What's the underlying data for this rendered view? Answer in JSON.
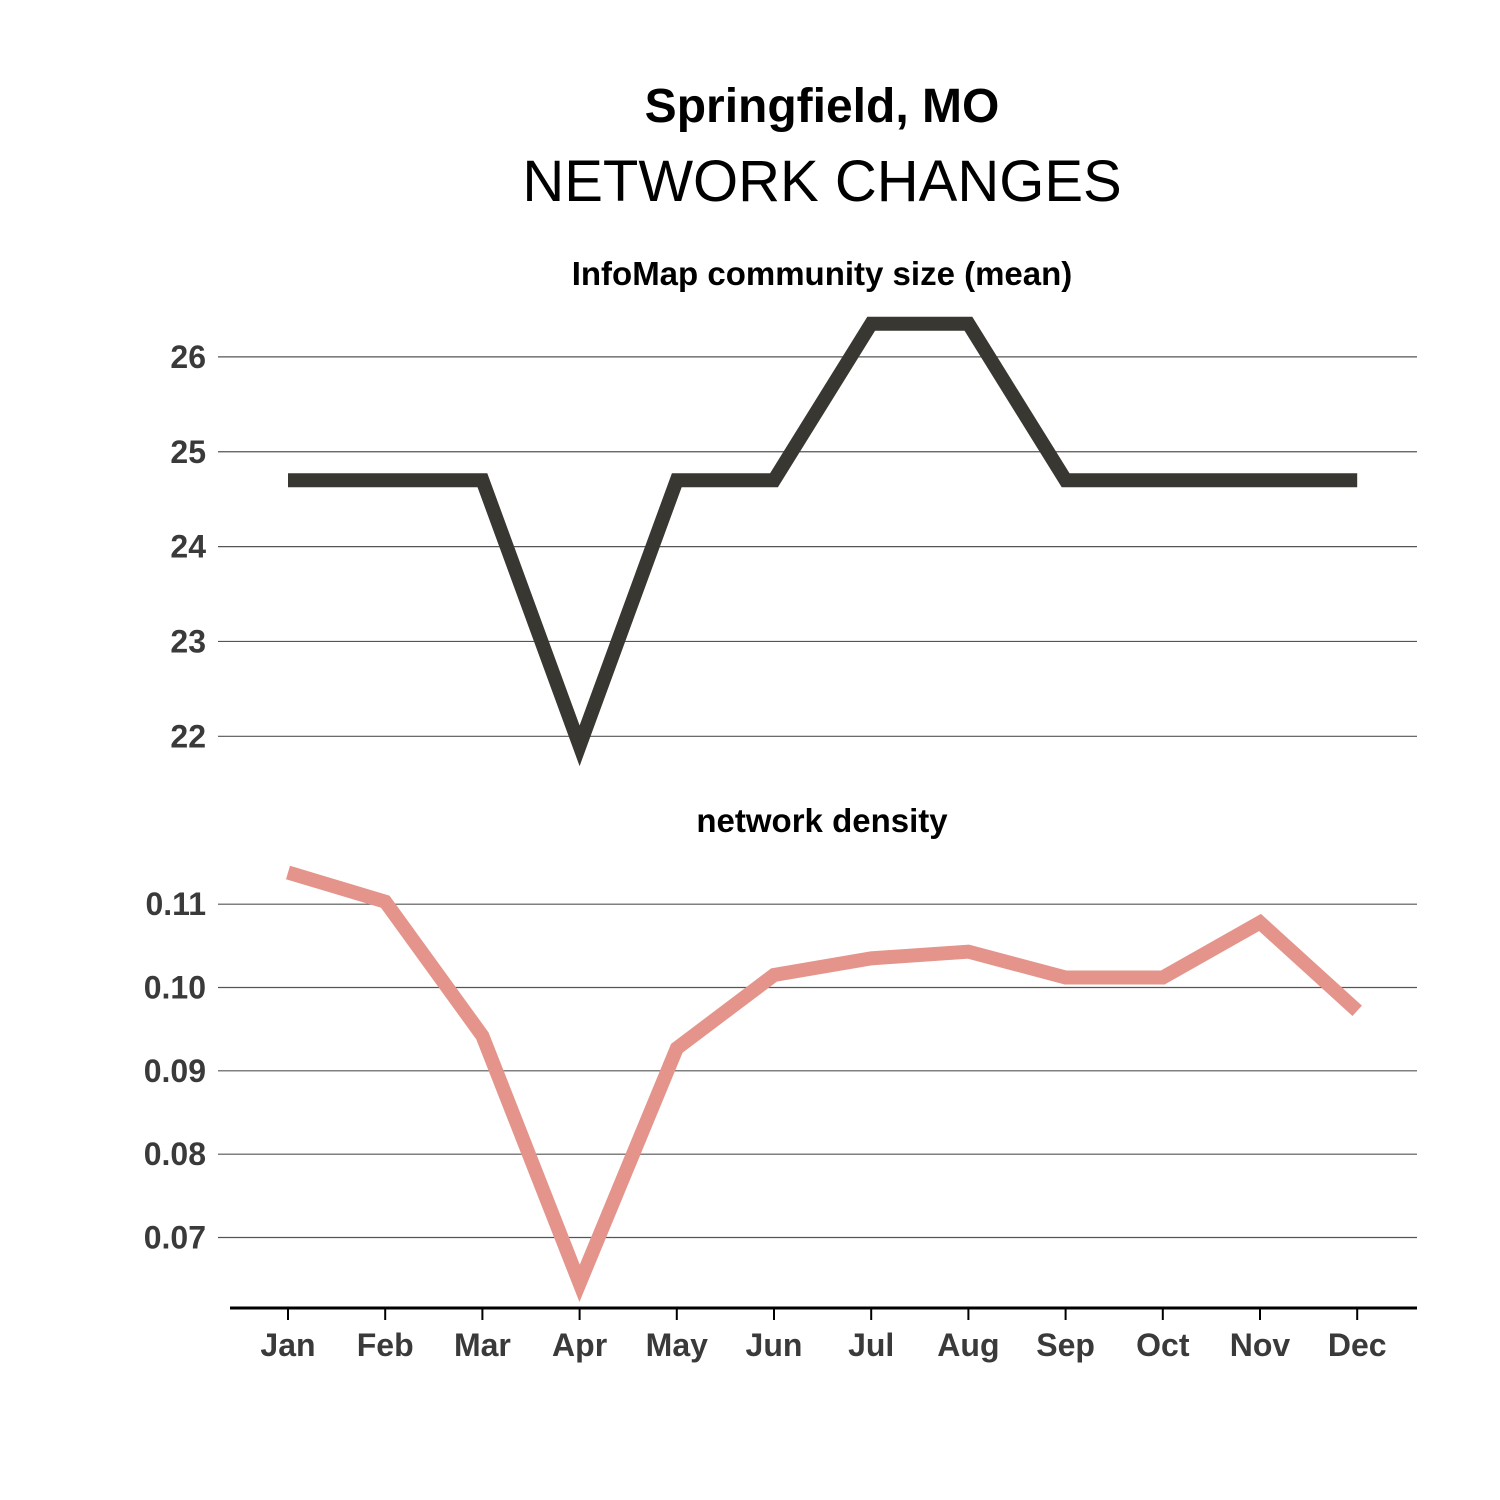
{
  "title": "Springfield, MO",
  "subtitle": "NETWORK CHANGES",
  "chart_data": [
    {
      "type": "line",
      "title": "InfoMap community size (mean)",
      "x": [
        "Jan",
        "Feb",
        "Mar",
        "Apr",
        "May",
        "Jun",
        "Jul",
        "Aug",
        "Sep",
        "Oct",
        "Nov",
        "Dec"
      ],
      "values": [
        24.7,
        24.7,
        24.7,
        21.9,
        24.7,
        24.7,
        26.35,
        26.35,
        24.7,
        24.7,
        24.7,
        24.7
      ],
      "yticks": [
        "22",
        "23",
        "24",
        "25",
        "26"
      ],
      "ylim": [
        21.75,
        26.6
      ],
      "grid": "horizontal",
      "color": "#393731"
    },
    {
      "type": "line",
      "title": "network density",
      "x": [
        "Jan",
        "Feb",
        "Mar",
        "Apr",
        "May",
        "Jun",
        "Jul",
        "Aug",
        "Sep",
        "Oct",
        "Nov",
        "Dec"
      ],
      "values": [
        0.1138,
        0.1103,
        0.0942,
        0.0645,
        0.0927,
        0.1015,
        0.1035,
        0.1043,
        0.1012,
        0.1012,
        0.1078,
        0.0972
      ],
      "yticks": [
        "0.07",
        "0.08",
        "0.09",
        "0.10",
        "0.11"
      ],
      "ylim": [
        0.0625,
        0.1165
      ],
      "grid": "horizontal",
      "color": "#e4948a"
    }
  ]
}
